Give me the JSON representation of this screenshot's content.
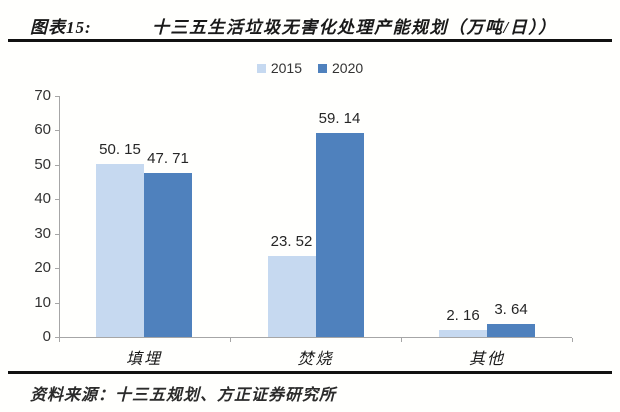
{
  "header": {
    "fig_label": "图表15:",
    "title": "十三五生活垃圾无害化处理产能规划（万吨/日））"
  },
  "legend": {
    "items": [
      {
        "label": "2015",
        "color": "#c6d9f0"
      },
      {
        "label": "2020",
        "color": "#4f81bd"
      }
    ],
    "position": "top-center"
  },
  "chart_data": {
    "type": "bar",
    "title": "十三五生活垃圾无害化处理产能规划（万吨/日））",
    "categories": [
      "填埋",
      "焚烧",
      "其他"
    ],
    "series": [
      {
        "name": "2015",
        "color": "#c6d9f0",
        "values": [
          50.15,
          23.52,
          2.16
        ],
        "data_labels": [
          "50. 15",
          "23. 52",
          "2. 16"
        ]
      },
      {
        "name": "2020",
        "color": "#4f81bd",
        "values": [
          47.71,
          59.14,
          3.64
        ],
        "data_labels": [
          "47. 71",
          "59. 14",
          "3. 64"
        ]
      }
    ],
    "xlabel": "",
    "ylabel": "",
    "ylim": [
      0,
      70
    ],
    "y_ticks": [
      0,
      10,
      20,
      30,
      40,
      50,
      60,
      70
    ],
    "grid": false,
    "axis_color": "#a6a6a6",
    "legend_position": "top-center"
  },
  "footer": {
    "source": "资料来源：十三五规划、方正证券研究所"
  }
}
